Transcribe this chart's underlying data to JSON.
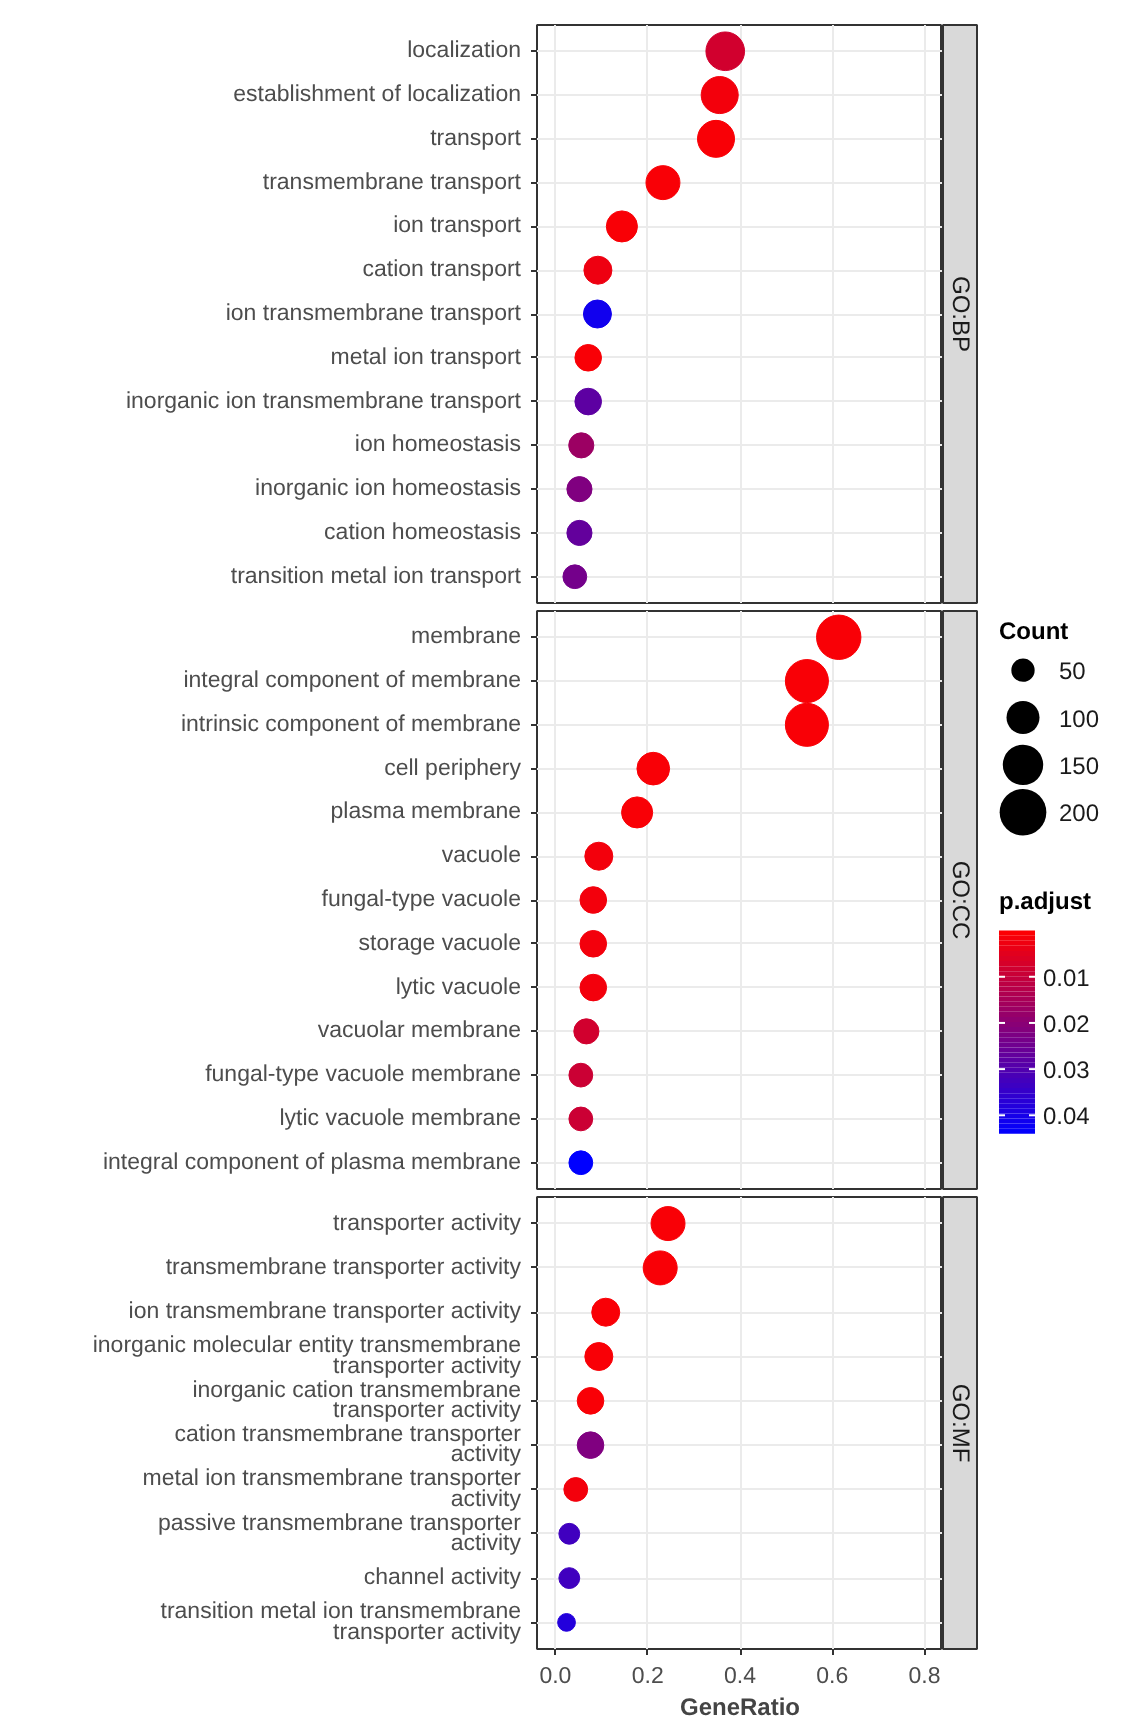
{
  "chart_data": {
    "type": "bubble",
    "orientation": "horizontal",
    "marker": "circle",
    "grid": true,
    "xlabel": "GeneRatio",
    "legend_title": "Count",
    "size_legend": [
      50,
      100,
      150,
      200
    ],
    "clabel": "p.adjust",
    "clim": [
      0,
      0.044
    ],
    "cticks": [
      0.01,
      0.02,
      0.03,
      0.04
    ],
    "xlim": [
      -0.04,
      0.84
    ],
    "xticks": [
      {
        "value": 0,
        "label": "0.0"
      },
      {
        "value": 0.2,
        "label": "0.2"
      },
      {
        "value": 0.4,
        "label": "0.4"
      },
      {
        "value": 0.6,
        "label": "0.6"
      },
      {
        "value": 0.8,
        "label": "0.8"
      }
    ],
    "categories": [
      "localization",
      "establishment of localization",
      "transport",
      "transmembrane transport",
      "ion transport",
      "cation transport",
      "ion transmembrane transport",
      "metal ion transport",
      "inorganic ion transmembrane transport",
      "ion homeostasis",
      "inorganic ion homeostasis",
      "cation homeostasis",
      "transition metal ion transport",
      "membrane",
      "integral component of membrane",
      "intrinsic component of membrane",
      "cell periphery",
      "plasma membrane",
      "vacuole",
      "fungal-type vacuole",
      "storage vacuole",
      "lytic vacuole",
      "vacuolar membrane",
      "fungal-type vacuole membrane",
      "lytic vacuole membrane",
      "integral component of plasma membrane",
      "transporter activity",
      "transmembrane transporter activity",
      "ion transmembrane transporter activity",
      "inorganic molecular entity transmembrane\ntransporter activity",
      "inorganic cation transmembrane\ntransporter activity",
      "cation transmembrane transporter\nactivity",
      "metal ion transmembrane transporter\nactivity",
      "passive transmembrane transporter\nactivity",
      "channel activity",
      "transition metal ion transmembrane\ntransporter activity"
    ],
    "series": [
      {
        "name": "GO:BP",
        "colors": [
          "#d1002e",
          "#f3000c",
          "#f90006",
          "#f90006",
          "#f90006",
          "#ee0011",
          "#1100ee",
          "#f90006",
          "#5d00a2",
          "#9c0063",
          "#800080",
          "#63009c",
          "#74008b",
          null,
          null,
          null,
          null,
          null,
          null,
          null,
          null,
          null,
          null,
          null,
          null,
          null,
          null,
          null,
          null,
          null,
          null,
          null,
          null,
          null,
          null,
          null
        ],
        "values": [
          0.368,
          0.356,
          0.348,
          0.233,
          0.144,
          0.092,
          0.091,
          0.071,
          0.071,
          0.056,
          0.052,
          0.052,
          0.042,
          null,
          null,
          null,
          null,
          null,
          null,
          null,
          null,
          null,
          null,
          null,
          null,
          null,
          null,
          null,
          null,
          null,
          null,
          null,
          null,
          null,
          null,
          null
        ],
        "sizes": [
          137,
          126,
          126,
          106,
          89,
          72,
          72,
          65,
          65,
          58,
          58,
          58,
          52,
          null,
          null,
          null,
          null,
          null,
          null,
          null,
          null,
          null,
          null,
          null,
          null,
          null,
          null,
          null,
          null,
          null,
          null,
          null,
          null,
          null,
          null,
          null
        ],
        "cvalues": [
          0.008,
          0.002,
          0.001,
          0.001,
          0.001,
          0.003,
          0.041,
          0.001,
          0.028,
          0.017,
          0.022,
          0.027,
          0.024,
          null,
          null,
          null,
          null,
          null,
          null,
          null,
          null,
          null,
          null,
          null,
          null,
          null,
          null,
          null,
          null,
          null,
          null,
          null,
          null,
          null,
          null,
          null
        ]
      },
      {
        "name": "GO:CC",
        "colors": [
          null,
          null,
          null,
          null,
          null,
          null,
          null,
          null,
          null,
          null,
          null,
          null,
          null,
          "#f90006",
          "#f90006",
          "#f90006",
          "#f90006",
          "#f90006",
          "#f3000c",
          "#f3000c",
          "#f3000c",
          "#f3000c",
          "#d1002e",
          "#cb0034",
          "#cb0034",
          "#0000ff",
          null,
          null,
          null,
          null,
          null,
          null,
          null,
          null,
          null,
          null
        ],
        "values": [
          null,
          null,
          null,
          null,
          null,
          null,
          null,
          null,
          null,
          null,
          null,
          null,
          null,
          0.614,
          0.545,
          0.545,
          0.212,
          0.177,
          0.094,
          0.082,
          0.082,
          0.082,
          0.067,
          0.055,
          0.055,
          0.055,
          null,
          null,
          null,
          null,
          null,
          null,
          null,
          null,
          null,
          null
        ],
        "sizes": [
          null,
          null,
          null,
          null,
          null,
          null,
          null,
          null,
          null,
          null,
          null,
          null,
          null,
          181,
          170,
          170,
          98,
          89,
          72,
          65,
          65,
          65,
          58,
          52,
          52,
          52,
          null,
          null,
          null,
          null,
          null,
          null,
          null,
          null,
          null,
          null
        ],
        "cvalues": [
          null,
          null,
          null,
          null,
          null,
          null,
          null,
          null,
          null,
          null,
          null,
          null,
          null,
          0.001,
          0.001,
          0.001,
          0.001,
          0.001,
          0.002,
          0.002,
          0.002,
          0.002,
          0.008,
          0.009,
          0.009,
          0.044,
          null,
          null,
          null,
          null,
          null,
          null,
          null,
          null,
          null,
          null
        ]
      },
      {
        "name": "GO:MF",
        "colors": [
          null,
          null,
          null,
          null,
          null,
          null,
          null,
          null,
          null,
          null,
          null,
          null,
          null,
          null,
          null,
          null,
          null,
          null,
          null,
          null,
          null,
          null,
          null,
          null,
          null,
          null,
          "#f90006",
          "#f90006",
          "#f90006",
          "#f90006",
          "#f90006",
          "#800080",
          "#f3000c",
          "#4000bf",
          "#4000bf",
          "#2300dc"
        ],
        "values": [
          null,
          null,
          null,
          null,
          null,
          null,
          null,
          null,
          null,
          null,
          null,
          null,
          null,
          null,
          null,
          null,
          null,
          null,
          null,
          null,
          null,
          null,
          null,
          null,
          null,
          null,
          0.244,
          0.227,
          0.109,
          0.094,
          0.076,
          0.076,
          0.044,
          0.03,
          0.03,
          0.024
        ],
        "sizes": [
          null,
          null,
          null,
          null,
          null,
          null,
          null,
          null,
          null,
          null,
          null,
          null,
          null,
          null,
          null,
          null,
          null,
          null,
          null,
          null,
          null,
          null,
          null,
          null,
          null,
          null,
          106,
          106,
          72,
          72,
          65,
          65,
          52,
          40,
          40,
          29
        ],
        "cvalues": [
          null,
          null,
          null,
          null,
          null,
          null,
          null,
          null,
          null,
          null,
          null,
          null,
          null,
          null,
          null,
          null,
          null,
          null,
          null,
          null,
          null,
          null,
          null,
          null,
          null,
          null,
          0.001,
          0.001,
          0.001,
          0.001,
          0.001,
          0.022,
          0.002,
          0.033,
          0.033,
          0.038
        ]
      }
    ]
  }
}
